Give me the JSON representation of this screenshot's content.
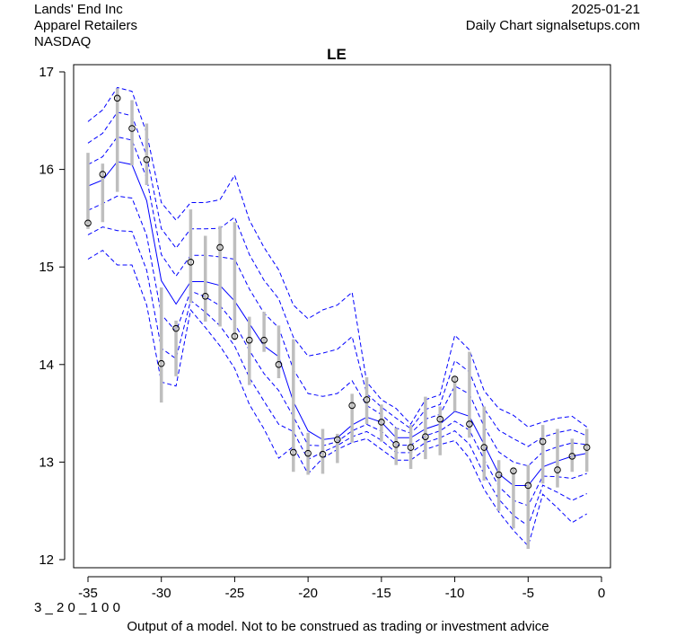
{
  "header": {
    "company": "Lands' End Inc",
    "sector": "Apparel Retailers",
    "exchange": "NASDAQ",
    "date": "2025-01-21",
    "source": "Daily Chart signalsetups.com"
  },
  "footer": {
    "code": "3 _ 2 0 _ 1 0 0",
    "disclaimer": "Output of a model. Not to be construed as trading or investment advice"
  },
  "chart_data": {
    "type": "line",
    "title": "LE",
    "xlabel": "",
    "ylabel": "",
    "xlim": [
      -36,
      0.5
    ],
    "ylim": [
      11.95,
      17.07
    ],
    "x_ticks": [
      -35,
      -30,
      -25,
      -20,
      -15,
      -10,
      -5,
      0
    ],
    "y_ticks": [
      12,
      13,
      14,
      15,
      16,
      17
    ],
    "grid": false,
    "colors": {
      "band": "#0000ff",
      "range": "#bebebe",
      "point": "#000000"
    },
    "x": [
      -35,
      -34,
      -33,
      -32,
      -31,
      -30,
      -29,
      -28,
      -27,
      -26,
      -25,
      -24,
      -23,
      -22,
      -21,
      -20,
      -19,
      -18,
      -17,
      -16,
      -15,
      -14,
      -13,
      -12,
      -11,
      -10,
      -9,
      -8,
      -7,
      -6,
      -5,
      -4,
      -3,
      -2,
      -1
    ],
    "close": [
      15.45,
      15.95,
      16.73,
      16.42,
      16.1,
      14.01,
      14.37,
      15.05,
      14.7,
      15.2,
      14.29,
      14.25,
      14.25,
      14.0,
      13.1,
      13.09,
      13.08,
      13.23,
      13.58,
      13.64,
      13.41,
      13.18,
      13.15,
      13.26,
      13.44,
      13.85,
      13.39,
      13.15,
      12.87,
      12.91,
      12.76,
      13.21,
      12.92,
      13.06,
      13.15
    ],
    "high": [
      16.17,
      16.06,
      16.83,
      16.71,
      16.47,
      14.79,
      14.45,
      15.59,
      15.32,
      15.42,
      15.46,
      14.49,
      14.54,
      14.4,
      14.26,
      13.3,
      13.34,
      13.29,
      13.7,
      13.87,
      13.59,
      13.35,
      13.38,
      13.67,
      13.57,
      13.88,
      14.13,
      13.57,
      13.02,
      12.94,
      12.97,
      13.38,
      13.34,
      13.24,
      13.34
    ],
    "low": [
      15.39,
      15.46,
      15.77,
      16.04,
      15.84,
      13.61,
      13.88,
      14.63,
      14.44,
      14.39,
      14.25,
      13.79,
      14.13,
      13.86,
      12.9,
      12.87,
      12.88,
      12.99,
      13.2,
      13.39,
      13.21,
      12.97,
      12.93,
      13.03,
      13.07,
      13.52,
      13.25,
      12.81,
      12.5,
      12.32,
      12.11,
      12.78,
      12.74,
      12.9,
      12.9
    ],
    "model_center": [
      15.83,
      15.89,
      16.08,
      16.05,
      15.68,
      14.86,
      14.62,
      14.85,
      14.85,
      14.81,
      14.65,
      14.42,
      14.19,
      14.08,
      13.62,
      13.32,
      13.23,
      13.25,
      13.38,
      13.46,
      13.41,
      13.25,
      13.25,
      13.34,
      13.39,
      13.52,
      13.47,
      13.18,
      12.88,
      12.76,
      12.76,
      12.95,
      13.01,
      13.06,
      13.09
    ],
    "model_upper_outer": [
      16.49,
      16.61,
      16.84,
      16.8,
      16.37,
      15.66,
      15.48,
      15.66,
      15.66,
      15.69,
      15.94,
      15.48,
      15.2,
      14.97,
      14.61,
      14.47,
      14.56,
      14.61,
      14.74,
      13.82,
      13.64,
      13.55,
      13.39,
      13.64,
      13.69,
      14.3,
      14.15,
      13.73,
      13.55,
      13.48,
      13.36,
      13.41,
      13.45,
      13.47,
      13.36
    ],
    "model_lower_outer": [
      15.08,
      15.17,
      15.02,
      15.02,
      14.61,
      13.82,
      13.78,
      14.56,
      14.38,
      14.19,
      13.96,
      13.59,
      13.34,
      13.04,
      13.16,
      12.88,
      13.04,
      13.13,
      13.2,
      13.24,
      13.13,
      13.02,
      13.02,
      13.13,
      13.18,
      13.22,
      13.04,
      12.72,
      12.49,
      12.3,
      12.14,
      12.67,
      12.53,
      12.38,
      12.47
    ]
  }
}
